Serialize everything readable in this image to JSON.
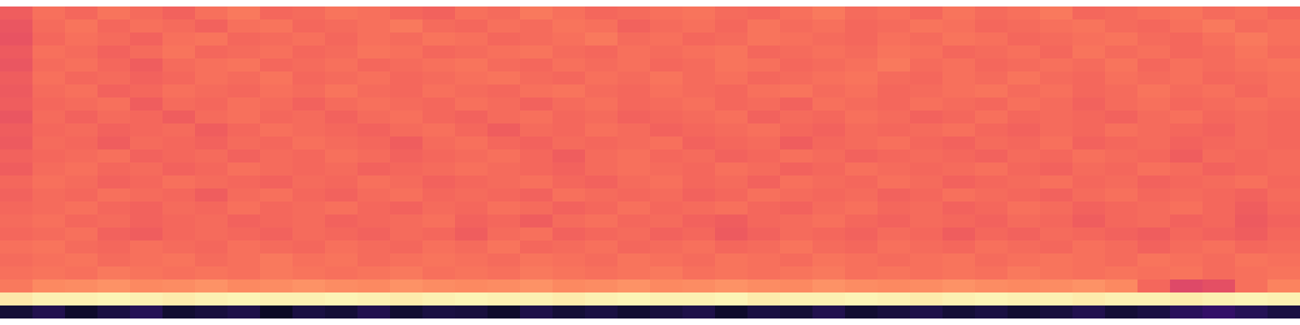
{
  "chart_data": {
    "type": "heatmap",
    "color": "magma",
    "zlim": [
      0,
      1
    ],
    "tick_labels": false,
    "cells": [
      [
        0.66,
        0.7,
        0.68,
        0.71,
        0.69,
        0.67,
        0.7,
        0.72,
        0.68,
        0.69,
        0.71,
        0.7,
        0.68,
        0.67,
        0.7,
        0.69,
        0.72,
        0.7,
        0.68,
        0.69,
        0.7,
        0.71,
        0.69,
        0.68,
        0.7,
        0.72,
        0.69,
        0.7,
        0.68,
        0.71,
        0.69,
        0.7,
        0.72,
        0.68,
        0.69,
        0.7,
        0.71,
        0.69,
        0.7,
        0.68
      ],
      [
        0.64,
        0.69,
        0.71,
        0.68,
        0.7,
        0.69,
        0.67,
        0.7,
        0.71,
        0.68,
        0.69,
        0.7,
        0.72,
        0.69,
        0.68,
        0.7,
        0.69,
        0.71,
        0.7,
        0.67,
        0.69,
        0.7,
        0.68,
        0.71,
        0.69,
        0.7,
        0.68,
        0.69,
        0.71,
        0.7,
        0.68,
        0.69,
        0.7,
        0.71,
        0.69,
        0.68,
        0.7,
        0.72,
        0.69,
        0.7
      ],
      [
        0.63,
        0.68,
        0.7,
        0.69,
        0.67,
        0.7,
        0.71,
        0.68,
        0.69,
        0.7,
        0.68,
        0.7,
        0.69,
        0.71,
        0.7,
        0.68,
        0.69,
        0.7,
        0.72,
        0.69,
        0.7,
        0.68,
        0.69,
        0.71,
        0.7,
        0.69,
        0.68,
        0.7,
        0.69,
        0.71,
        0.7,
        0.68,
        0.69,
        0.7,
        0.71,
        0.69,
        0.68,
        0.7,
        0.72,
        0.7
      ],
      [
        0.65,
        0.7,
        0.69,
        0.67,
        0.69,
        0.71,
        0.68,
        0.69,
        0.7,
        0.68,
        0.69,
        0.71,
        0.7,
        0.68,
        0.69,
        0.7,
        0.71,
        0.69,
        0.68,
        0.7,
        0.69,
        0.7,
        0.71,
        0.68,
        0.69,
        0.7,
        0.69,
        0.71,
        0.7,
        0.68,
        0.69,
        0.7,
        0.68,
        0.71,
        0.69,
        0.7,
        0.68,
        0.69,
        0.71,
        0.69
      ],
      [
        0.64,
        0.69,
        0.7,
        0.68,
        0.66,
        0.69,
        0.7,
        0.71,
        0.68,
        0.69,
        0.7,
        0.68,
        0.69,
        0.7,
        0.71,
        0.69,
        0.68,
        0.7,
        0.69,
        0.7,
        0.68,
        0.69,
        0.71,
        0.7,
        0.68,
        0.69,
        0.7,
        0.72,
        0.69,
        0.7,
        0.68,
        0.69,
        0.7,
        0.69,
        0.71,
        0.68,
        0.7,
        0.69,
        0.7,
        0.71
      ],
      [
        0.66,
        0.7,
        0.68,
        0.69,
        0.67,
        0.68,
        0.7,
        0.69,
        0.71,
        0.68,
        0.69,
        0.7,
        0.68,
        0.69,
        0.7,
        0.71,
        0.69,
        0.68,
        0.7,
        0.69,
        0.71,
        0.69,
        0.7,
        0.68,
        0.69,
        0.7,
        0.71,
        0.69,
        0.68,
        0.7,
        0.69,
        0.71,
        0.69,
        0.68,
        0.7,
        0.69,
        0.7,
        0.68,
        0.69,
        0.7
      ],
      [
        0.65,
        0.69,
        0.7,
        0.67,
        0.68,
        0.7,
        0.69,
        0.68,
        0.7,
        0.69,
        0.71,
        0.69,
        0.68,
        0.7,
        0.69,
        0.68,
        0.7,
        0.71,
        0.69,
        0.68,
        0.7,
        0.69,
        0.68,
        0.7,
        0.71,
        0.69,
        0.7,
        0.68,
        0.69,
        0.7,
        0.71,
        0.69,
        0.7,
        0.68,
        0.69,
        0.71,
        0.69,
        0.7,
        0.68,
        0.7
      ],
      [
        0.66,
        0.68,
        0.69,
        0.7,
        0.66,
        0.69,
        0.68,
        0.7,
        0.69,
        0.67,
        0.69,
        0.7,
        0.69,
        0.68,
        0.7,
        0.69,
        0.67,
        0.69,
        0.7,
        0.68,
        0.69,
        0.7,
        0.68,
        0.69,
        0.67,
        0.7,
        0.69,
        0.68,
        0.7,
        0.69,
        0.68,
        0.7,
        0.69,
        0.67,
        0.69,
        0.7,
        0.68,
        0.69,
        0.7,
        0.69
      ],
      [
        0.64,
        0.69,
        0.67,
        0.69,
        0.68,
        0.66,
        0.69,
        0.7,
        0.68,
        0.69,
        0.67,
        0.69,
        0.7,
        0.68,
        0.67,
        0.69,
        0.7,
        0.68,
        0.69,
        0.67,
        0.68,
        0.69,
        0.7,
        0.67,
        0.69,
        0.68,
        0.7,
        0.69,
        0.67,
        0.68,
        0.7,
        0.68,
        0.69,
        0.68,
        0.67,
        0.69,
        0.7,
        0.68,
        0.69,
        0.68
      ],
      [
        0.66,
        0.68,
        0.69,
        0.67,
        0.68,
        0.69,
        0.66,
        0.68,
        0.7,
        0.69,
        0.68,
        0.67,
        0.69,
        0.7,
        0.68,
        0.66,
        0.69,
        0.68,
        0.7,
        0.69,
        0.67,
        0.68,
        0.69,
        0.7,
        0.68,
        0.67,
        0.69,
        0.68,
        0.69,
        0.7,
        0.68,
        0.67,
        0.69,
        0.68,
        0.7,
        0.69,
        0.68,
        0.67,
        0.69,
        0.68
      ],
      [
        0.65,
        0.69,
        0.68,
        0.66,
        0.69,
        0.68,
        0.67,
        0.69,
        0.68,
        0.7,
        0.69,
        0.68,
        0.66,
        0.69,
        0.7,
        0.68,
        0.67,
        0.69,
        0.68,
        0.69,
        0.7,
        0.67,
        0.68,
        0.69,
        0.66,
        0.68,
        0.69,
        0.7,
        0.68,
        0.67,
        0.69,
        0.68,
        0.7,
        0.67,
        0.68,
        0.69,
        0.67,
        0.68,
        0.69,
        0.68
      ],
      [
        0.67,
        0.68,
        0.69,
        0.7,
        0.67,
        0.68,
        0.69,
        0.67,
        0.69,
        0.68,
        0.7,
        0.69,
        0.67,
        0.68,
        0.69,
        0.7,
        0.68,
        0.66,
        0.69,
        0.7,
        0.68,
        0.69,
        0.67,
        0.68,
        0.7,
        0.69,
        0.67,
        0.68,
        0.69,
        0.68,
        0.67,
        0.69,
        0.68,
        0.7,
        0.69,
        0.68,
        0.66,
        0.69,
        0.68,
        0.69
      ],
      [
        0.66,
        0.69,
        0.7,
        0.68,
        0.69,
        0.67,
        0.68,
        0.7,
        0.69,
        0.68,
        0.69,
        0.67,
        0.68,
        0.69,
        0.7,
        0.69,
        0.68,
        0.67,
        0.69,
        0.7,
        0.69,
        0.68,
        0.7,
        0.69,
        0.67,
        0.68,
        0.7,
        0.69,
        0.68,
        0.69,
        0.7,
        0.68,
        0.67,
        0.69,
        0.68,
        0.7,
        0.69,
        0.67,
        0.68,
        0.69
      ],
      [
        0.68,
        0.7,
        0.69,
        0.67,
        0.68,
        0.7,
        0.69,
        0.68,
        0.67,
        0.69,
        0.68,
        0.7,
        0.69,
        0.67,
        0.68,
        0.69,
        0.7,
        0.68,
        0.67,
        0.69,
        0.7,
        0.68,
        0.69,
        0.67,
        0.7,
        0.69,
        0.68,
        0.7,
        0.69,
        0.67,
        0.68,
        0.69,
        0.7,
        0.68,
        0.69,
        0.67,
        0.68,
        0.69,
        0.7,
        0.68
      ],
      [
        0.67,
        0.69,
        0.68,
        0.7,
        0.69,
        0.68,
        0.66,
        0.69,
        0.7,
        0.68,
        0.67,
        0.69,
        0.7,
        0.68,
        0.69,
        0.68,
        0.67,
        0.7,
        0.69,
        0.68,
        0.69,
        0.67,
        0.68,
        0.7,
        0.69,
        0.68,
        0.69,
        0.67,
        0.68,
        0.7,
        0.69,
        0.68,
        0.67,
        0.69,
        0.7,
        0.68,
        0.69,
        0.68,
        0.67,
        0.69
      ],
      [
        0.68,
        0.69,
        0.7,
        0.68,
        0.67,
        0.69,
        0.68,
        0.7,
        0.68,
        0.69,
        0.7,
        0.68,
        0.67,
        0.69,
        0.68,
        0.7,
        0.69,
        0.67,
        0.68,
        0.7,
        0.68,
        0.69,
        0.7,
        0.68,
        0.67,
        0.69,
        0.7,
        0.68,
        0.69,
        0.67,
        0.68,
        0.7,
        0.69,
        0.67,
        0.68,
        0.69,
        0.7,
        0.68,
        0.66,
        0.68
      ],
      [
        0.69,
        0.7,
        0.68,
        0.69,
        0.67,
        0.68,
        0.69,
        0.67,
        0.68,
        0.69,
        0.67,
        0.68,
        0.69,
        0.7,
        0.67,
        0.68,
        0.66,
        0.69,
        0.7,
        0.68,
        0.69,
        0.67,
        0.66,
        0.68,
        0.69,
        0.7,
        0.68,
        0.67,
        0.69,
        0.68,
        0.67,
        0.69,
        0.68,
        0.66,
        0.68,
        0.69,
        0.67,
        0.68,
        0.65,
        0.67
      ],
      [
        0.68,
        0.69,
        0.7,
        0.67,
        0.66,
        0.68,
        0.69,
        0.68,
        0.67,
        0.69,
        0.68,
        0.67,
        0.69,
        0.68,
        0.66,
        0.69,
        0.7,
        0.67,
        0.68,
        0.69,
        0.67,
        0.68,
        0.65,
        0.67,
        0.69,
        0.68,
        0.67,
        0.69,
        0.68,
        0.66,
        0.68,
        0.67,
        0.69,
        0.68,
        0.67,
        0.66,
        0.68,
        0.67,
        0.66,
        0.68
      ],
      [
        0.7,
        0.71,
        0.69,
        0.68,
        0.7,
        0.69,
        0.68,
        0.7,
        0.69,
        0.68,
        0.7,
        0.69,
        0.68,
        0.7,
        0.69,
        0.71,
        0.68,
        0.69,
        0.7,
        0.68,
        0.69,
        0.7,
        0.68,
        0.69,
        0.71,
        0.69,
        0.68,
        0.7,
        0.69,
        0.68,
        0.7,
        0.69,
        0.68,
        0.7,
        0.69,
        0.67,
        0.69,
        0.7,
        0.68,
        0.69
      ],
      [
        0.69,
        0.7,
        0.71,
        0.69,
        0.7,
        0.71,
        0.69,
        0.7,
        0.72,
        0.7,
        0.71,
        0.69,
        0.7,
        0.71,
        0.7,
        0.69,
        0.71,
        0.7,
        0.69,
        0.71,
        0.7,
        0.69,
        0.71,
        0.7,
        0.69,
        0.71,
        0.7,
        0.69,
        0.7,
        0.71,
        0.69,
        0.7,
        0.71,
        0.7,
        0.69,
        0.71,
        0.7,
        0.69,
        0.71,
        0.7
      ],
      [
        0.7,
        0.71,
        0.7,
        0.72,
        0.71,
        0.7,
        0.71,
        0.7,
        0.72,
        0.71,
        0.7,
        0.71,
        0.72,
        0.7,
        0.71,
        0.7,
        0.72,
        0.71,
        0.7,
        0.71,
        0.72,
        0.7,
        0.71,
        0.7,
        0.71,
        0.72,
        0.7,
        0.71,
        0.7,
        0.71,
        0.7,
        0.72,
        0.71,
        0.7,
        0.71,
        0.7,
        0.71,
        0.69,
        0.7,
        0.71
      ],
      [
        0.72,
        0.75,
        0.76,
        0.77,
        0.75,
        0.76,
        0.77,
        0.75,
        0.76,
        0.77,
        0.76,
        0.75,
        0.77,
        0.76,
        0.75,
        0.76,
        0.77,
        0.75,
        0.76,
        0.77,
        0.75,
        0.76,
        0.77,
        0.76,
        0.75,
        0.77,
        0.76,
        0.75,
        0.76,
        0.77,
        0.76,
        0.75,
        0.76,
        0.77,
        0.75,
        0.68,
        0.6,
        0.62,
        0.7,
        0.74
      ],
      [
        0.95,
        0.97,
        0.97,
        0.98,
        0.97,
        0.96,
        0.97,
        0.98,
        0.97,
        0.97,
        0.98,
        0.97,
        0.96,
        0.97,
        0.98,
        0.97,
        0.97,
        0.96,
        0.97,
        0.98,
        0.97,
        0.97,
        0.98,
        0.96,
        0.97,
        0.97,
        0.98,
        0.97,
        0.96,
        0.97,
        0.98,
        0.97,
        0.97,
        0.96,
        0.97,
        0.97,
        0.96,
        0.97,
        0.98,
        0.97
      ],
      [
        0.1,
        0.14,
        0.08,
        0.12,
        0.15,
        0.09,
        0.11,
        0.13,
        0.07,
        0.12,
        0.1,
        0.14,
        0.09,
        0.12,
        0.11,
        0.08,
        0.13,
        0.1,
        0.12,
        0.09,
        0.11,
        0.13,
        0.08,
        0.12,
        0.1,
        0.14,
        0.09,
        0.11,
        0.13,
        0.1,
        0.12,
        0.09,
        0.11,
        0.14,
        0.1,
        0.12,
        0.16,
        0.18,
        0.15,
        0.12
      ]
    ]
  }
}
